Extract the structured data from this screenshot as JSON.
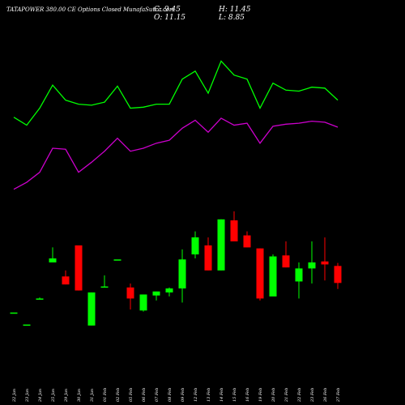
{
  "chart_data": {
    "type": "candlestick",
    "title": "TATAPOWER 380.00 CE Options  Closed MunafaSutra.com",
    "summary": {
      "close": "C: 9.45",
      "high": "H: 11.45",
      "open": "O: 11.15",
      "low": "L: 8.85"
    },
    "categories": [
      "22 Jan",
      "23 Jan",
      "24 Jan",
      "25 Jan",
      "29 Jan",
      "30 Jan",
      "31 Jan",
      "01 Feb",
      "02 Feb",
      "05 Feb",
      "06 Feb",
      "07 Feb",
      "08 Feb",
      "09 Feb",
      "12 Feb",
      "13 Feb",
      "14 Feb",
      "15 Feb",
      "16 Feb",
      "19 Feb",
      "20 Feb",
      "21 Feb",
      "22 Feb",
      "23 Feb",
      "26 Feb",
      "27 Feb"
    ],
    "open": [
      6.5,
      5.3,
      7.8,
      11.5,
      10.1,
      13.2,
      5.2,
      9.1,
      11.8,
      9.0,
      6.7,
      8.2,
      8.5,
      8.9,
      12.3,
      13.2,
      10.7,
      15.7,
      14.2,
      12.9,
      8.1,
      12.2,
      9.6,
      10.9,
      11.6,
      11.15
    ],
    "high": [
      6.5,
      5.3,
      8.0,
      13.0,
      10.7,
      13.2,
      8.5,
      10.2,
      11.8,
      9.4,
      8.3,
      8.6,
      9.0,
      12.8,
      14.6,
      14.0,
      15.8,
      16.6,
      14.6,
      12.9,
      12.3,
      13.6,
      11.5,
      13.6,
      14.0,
      11.45
    ],
    "low": [
      6.5,
      5.3,
      7.8,
      11.5,
      9.3,
      8.7,
      5.2,
      9.0,
      11.8,
      6.8,
      6.6,
      7.7,
      8.1,
      7.5,
      11.9,
      10.7,
      10.7,
      13.6,
      13.0,
      7.7,
      8.1,
      11.0,
      7.9,
      9.4,
      9.7,
      8.85
    ],
    "close": [
      6.5,
      5.3,
      7.9,
      11.9,
      9.3,
      8.7,
      8.5,
      9.1,
      11.8,
      7.9,
      8.3,
      8.6,
      8.9,
      11.8,
      14.0,
      10.7,
      15.8,
      13.6,
      13.0,
      7.9,
      12.1,
      11.0,
      10.9,
      11.5,
      11.3,
      9.45
    ],
    "up_color": "#00ff00",
    "down_color": "#ff0000",
    "lines": [
      {
        "color": "#00ff00",
        "values": [
          26.0,
          25.2,
          26.9,
          29.2,
          27.7,
          27.3,
          27.2,
          27.5,
          29.1,
          26.9,
          27.0,
          27.3,
          27.3,
          29.8,
          30.6,
          28.4,
          31.6,
          30.2,
          29.8,
          26.9,
          29.4,
          28.7,
          28.6,
          29.0,
          28.9,
          27.7
        ]
      },
      {
        "color": "#cc00cc",
        "values": [
          18.8,
          19.5,
          20.5,
          22.9,
          22.8,
          20.5,
          21.5,
          22.6,
          23.9,
          22.6,
          22.9,
          23.4,
          23.7,
          24.9,
          25.7,
          24.5,
          25.9,
          25.2,
          25.4,
          23.4,
          25.1,
          25.3,
          25.4,
          25.6,
          25.5,
          25.0
        ]
      }
    ],
    "ylim": [
      0.5,
      37.7
    ]
  }
}
